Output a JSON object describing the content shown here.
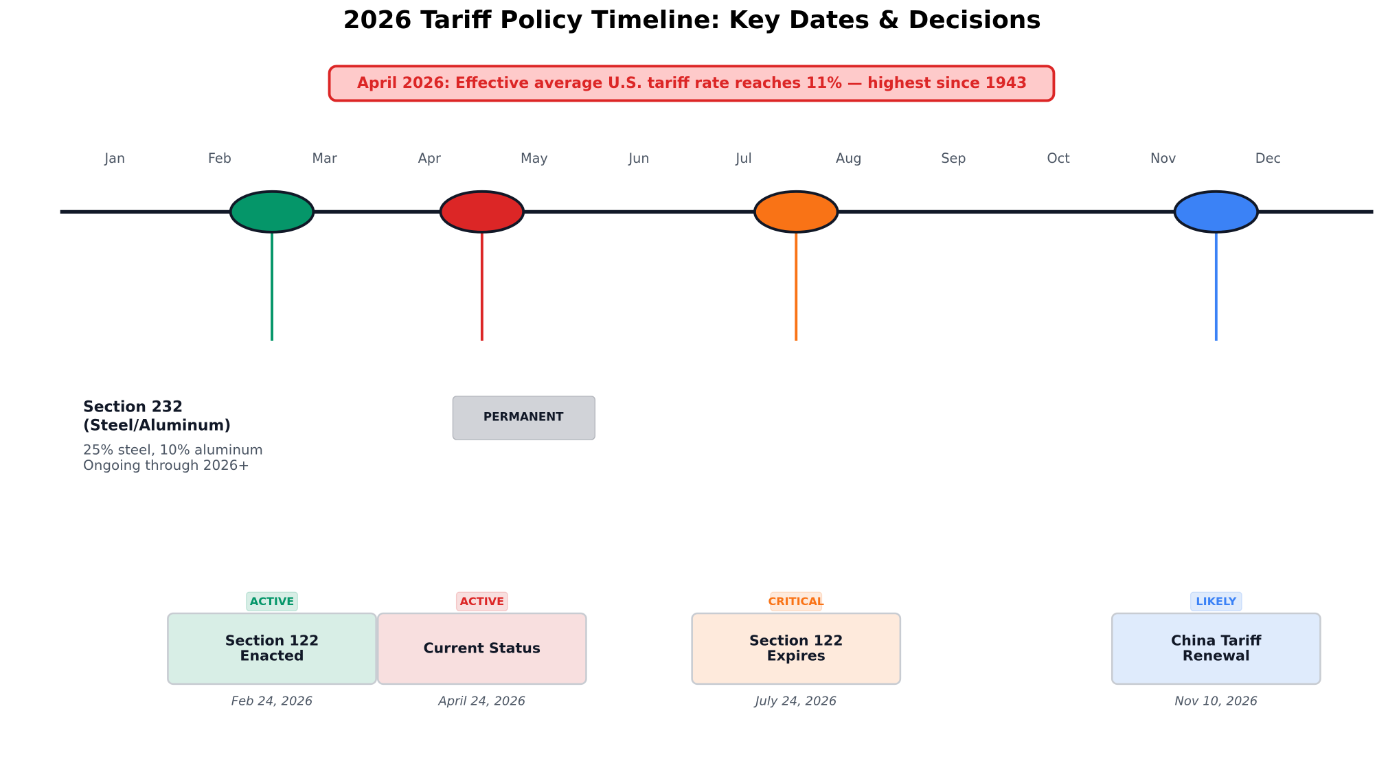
{
  "title": "2026 Tariff Policy Timeline: Key Dates & Decisions",
  "banner": "April 2026: Effective average U.S. tariff rate reaches 11% — highest since 1943",
  "months": [
    "Jan",
    "Feb",
    "Mar",
    "Apr",
    "May",
    "Jun",
    "Jul",
    "Aug",
    "Sep",
    "Oct",
    "Nov",
    "Dec"
  ],
  "events": [
    {
      "label": "Section 122\nEnacted",
      "status": "ACTIVE",
      "date": "Feb 24, 2026",
      "color": "#059669",
      "fill": "#d8eee6"
    },
    {
      "label": "Current Status",
      "status": "ACTIVE",
      "date": "April 24, 2026",
      "color": "#dc2626",
      "fill": "#f8dfdf"
    },
    {
      "label": "Section 122\nExpires",
      "status": "CRITICAL",
      "date": "July 24, 2026",
      "color": "#f97316",
      "fill": "#feeadc"
    },
    {
      "label": "China Tariff\nRenewal",
      "status": "LIKELY",
      "date": "Nov 10, 2026",
      "color": "#3b82f6",
      "fill": "#dfebfc"
    }
  ],
  "note": {
    "title": "Section 232\n(Steel/Aluminum)",
    "body": "25% steel, 10% aluminum\nOngoing through 2026+"
  },
  "badge": "PERMANENT"
}
